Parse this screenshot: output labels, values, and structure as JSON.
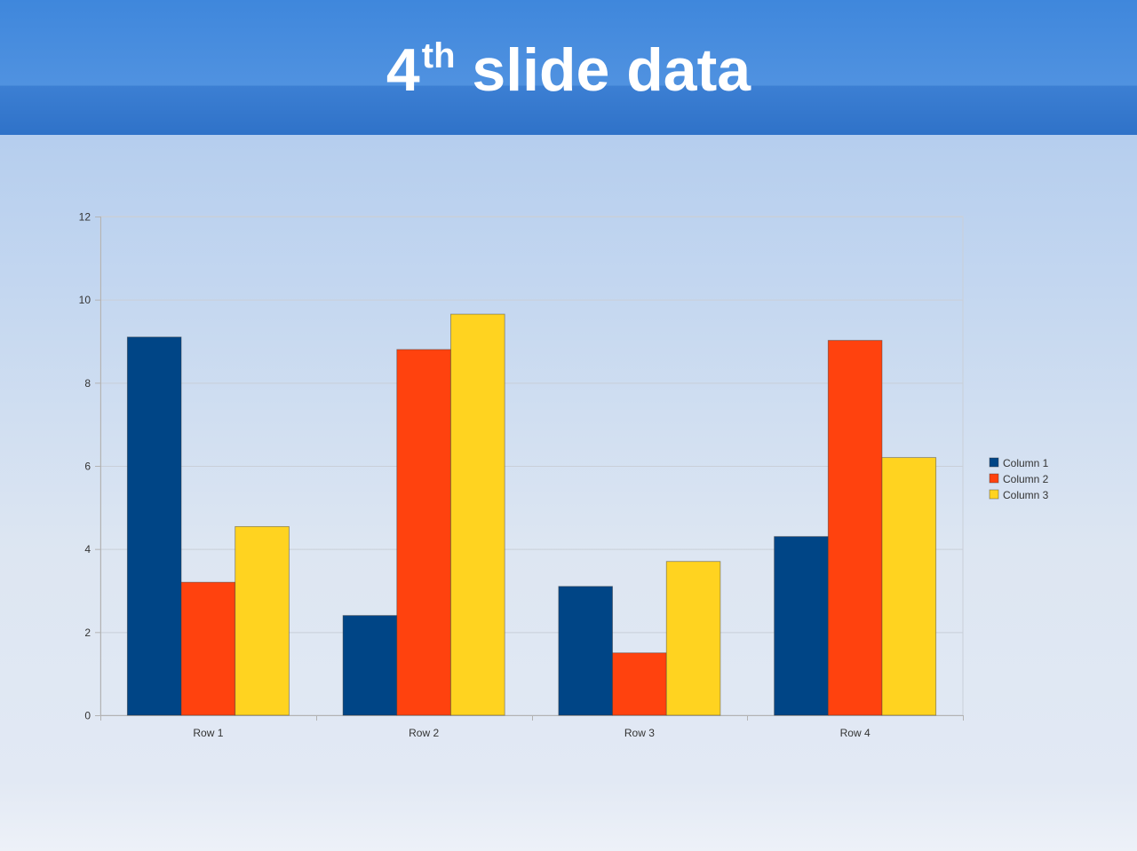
{
  "slide": {
    "title_main": "4",
    "title_sup": "th",
    "title_rest": " slide data"
  },
  "chart_data": {
    "type": "bar",
    "categories": [
      "Row 1",
      "Row 2",
      "Row 3",
      "Row 4"
    ],
    "series": [
      {
        "name": "Column 1",
        "color": "#004586",
        "values": [
          9.1,
          2.4,
          3.1,
          4.3
        ]
      },
      {
        "name": "Column 2",
        "color": "#ff420e",
        "values": [
          3.2,
          8.8,
          1.5,
          9.02
        ]
      },
      {
        "name": "Column 3",
        "color": "#ffd320",
        "values": [
          4.54,
          9.65,
          3.7,
          6.2
        ]
      }
    ],
    "ylim": [
      0,
      12
    ],
    "yticks": [
      0,
      2,
      4,
      6,
      8,
      10,
      12
    ],
    "grid": true,
    "legend": "right"
  }
}
